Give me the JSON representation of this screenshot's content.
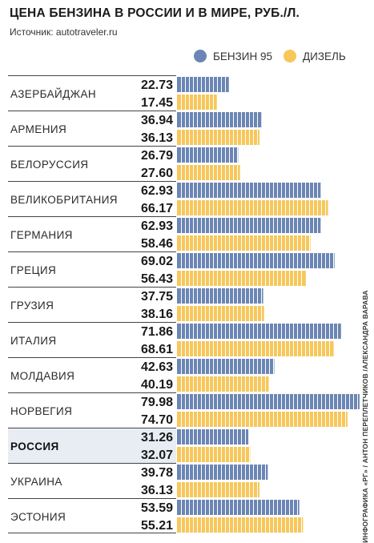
{
  "header": {
    "title": "ЦЕНА БЕНЗИНА В РОССИИ И В МИРЕ, РУБ./Л.",
    "source": "Источник: autotraveler.ru"
  },
  "credit": "ИНФОГРАФИКА «РГ» / АНТОН ПЕРЕПЛЕТЧИКОВ /АЛЕКСАНДРА ВАРАВА",
  "colors": {
    "benzin": "#6b86b4",
    "diesel": "#f7c75b",
    "highlight_row": "#e7edf3"
  },
  "chart_data": {
    "type": "bar",
    "orientation": "horizontal",
    "title": "ЦЕНА БЕНЗИНА В РОССИИ И В МИРЕ, РУБ./Л.",
    "legend_position": "top-right",
    "highlight": "РОССИЯ",
    "xlim": [
      0,
      80
    ],
    "categories": [
      "АЗЕРБАЙДЖАН",
      "АРМЕНИЯ",
      "БЕЛОРУССИЯ",
      "ВЕЛИКОБРИТАНИЯ",
      "ГЕРМАНИЯ",
      "ГРЕЦИЯ",
      "ГРУЗИЯ",
      "ИТАЛИЯ",
      "МОЛДАВИЯ",
      "НОРВЕГИЯ",
      "РОССИЯ",
      "УКРАИНА",
      "ЭСТОНИЯ"
    ],
    "series": [
      {
        "name": "БЕНЗИН 95",
        "color": "#6b86b4",
        "values": [
          22.73,
          36.94,
          26.79,
          62.93,
          62.93,
          69.02,
          37.75,
          71.86,
          42.63,
          79.98,
          31.26,
          39.78,
          53.59
        ]
      },
      {
        "name": "ДИЗЕЛЬ",
        "color": "#f7c75b",
        "values": [
          17.45,
          36.13,
          27.6,
          66.17,
          58.46,
          56.43,
          38.16,
          68.61,
          40.19,
          74.7,
          32.07,
          36.13,
          55.21
        ]
      }
    ]
  }
}
